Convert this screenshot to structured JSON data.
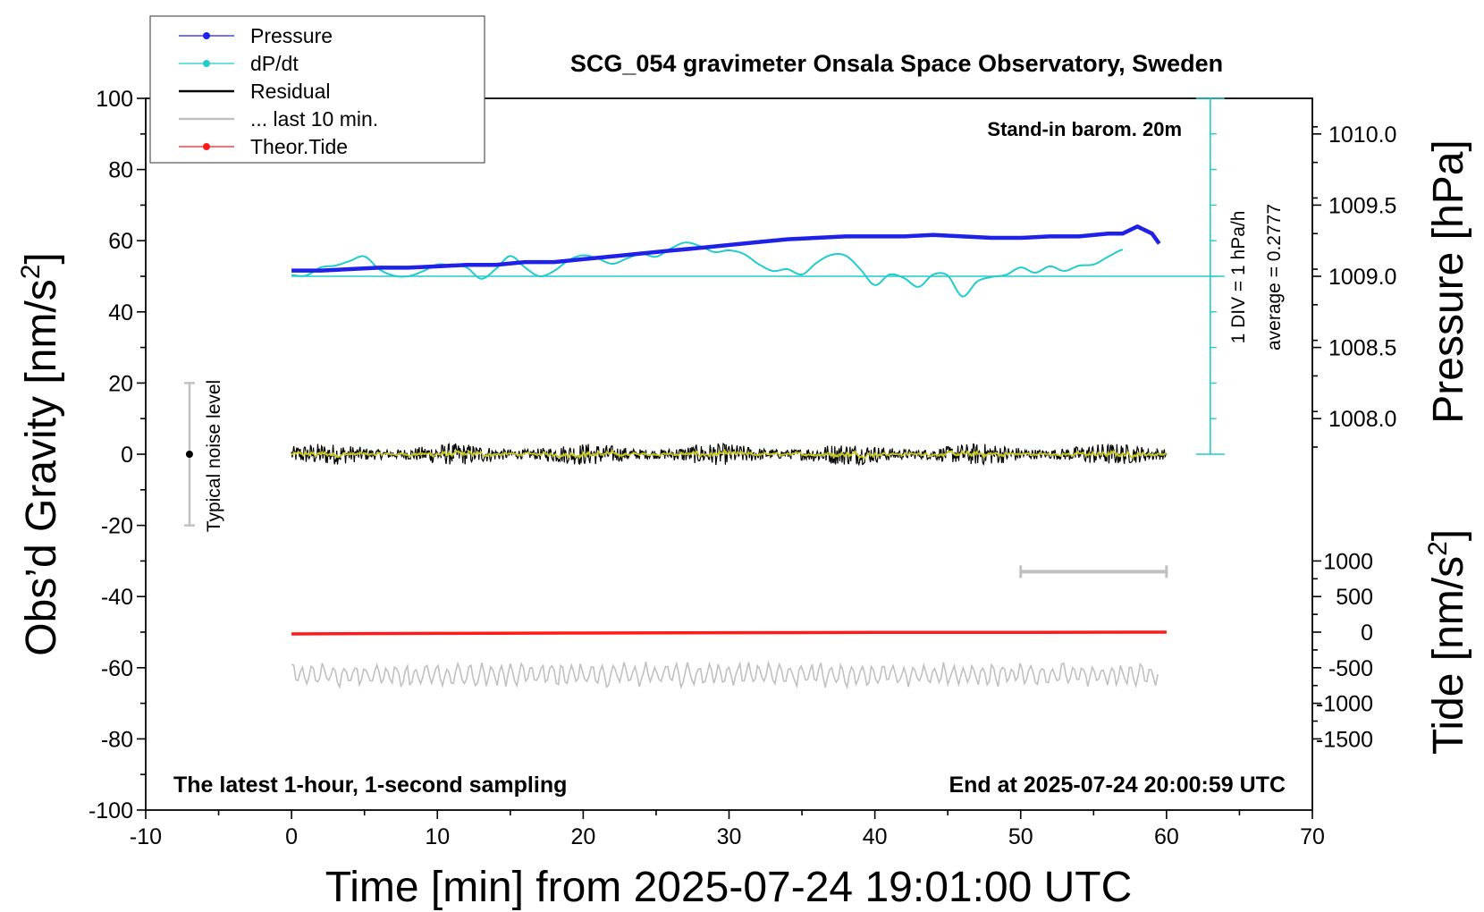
{
  "chart_data": {
    "type": "line",
    "title": "SCG_054 gravimeter Onsala Space Observatory, Sweden",
    "xlabel": "Time [min] from 2025-07-24 19:01:00 UTC",
    "ylabel_left": "Obs’d Gravity [nm/s",
    "ylabel_left_sup": "2",
    "ylabel_left_close": "]",
    "ylabel_right_pressure": "Pressure [hPa]",
    "ylabel_right_tide": "Tide [nm/s",
    "ylabel_right_tide_sup": "2",
    "ylabel_right_tide_close": "]",
    "xlim": [
      -10,
      70
    ],
    "ylim_left": [
      -100,
      100
    ],
    "pressure_axis": {
      "value_at_gravity_50": 1009.0,
      "hpa_per_40_gravity": 1.0
    },
    "tide_axis": {
      "value_at_gravity_minus_50": 0,
      "nm_per_gravity_unit": 50
    },
    "x_ticks": [
      "-10",
      "0",
      "10",
      "20",
      "30",
      "40",
      "50",
      "60",
      "70"
    ],
    "x_tick_values": [
      -10,
      0,
      10,
      20,
      30,
      40,
      50,
      60,
      70
    ],
    "y_ticks_left": [
      "100",
      "80",
      "60",
      "40",
      "20",
      "0",
      "-20",
      "-40",
      "-60",
      "-80",
      "-100"
    ],
    "y_tick_values_left": [
      100,
      80,
      60,
      40,
      20,
      0,
      -20,
      -40,
      -60,
      -80,
      -100
    ],
    "pressure_ticks": [
      "1010.0",
      "1009.5",
      "1009.0",
      "1008.5",
      "1008.0"
    ],
    "pressure_tick_values": [
      1010.0,
      1009.5,
      1009.0,
      1008.5,
      1008.0
    ],
    "tide_ticks": [
      "1000",
      "500",
      "0",
      "-500",
      "-1000",
      "-1500"
    ],
    "tide_tick_values": [
      1000,
      500,
      0,
      -500,
      -1000,
      -1500
    ],
    "legend": [
      {
        "label": "Pressure",
        "color": "#1f22e6",
        "marker": true
      },
      {
        "label": "dP/dt",
        "color": "#22cccc",
        "marker": true
      },
      {
        "label": "Residual",
        "color": "#000000",
        "marker": false
      },
      {
        "label": "... last 10 min.",
        "color": "#c0c0c0",
        "marker": false
      },
      {
        "label": "Theor.Tide",
        "color": "#ff1a1a",
        "marker": true
      }
    ],
    "series": [
      {
        "name": "Pressure",
        "color": "#1f22e6",
        "axis": "pressure",
        "x": [
          0,
          2,
          4,
          6,
          8,
          10,
          12,
          14,
          16,
          18,
          20,
          22,
          24,
          26,
          28,
          30,
          32,
          34,
          36,
          38,
          40,
          42,
          44,
          46,
          48,
          50,
          52,
          54,
          56,
          57,
          58,
          59,
          59.5
        ],
        "y": [
          1009.04,
          1009.04,
          1009.05,
          1009.06,
          1009.06,
          1009.07,
          1009.08,
          1009.08,
          1009.1,
          1009.1,
          1009.12,
          1009.14,
          1009.16,
          1009.18,
          1009.2,
          1009.22,
          1009.24,
          1009.26,
          1009.27,
          1009.28,
          1009.28,
          1009.28,
          1009.29,
          1009.28,
          1009.27,
          1009.27,
          1009.28,
          1009.28,
          1009.3,
          1009.3,
          1009.35,
          1009.3,
          1009.23
        ]
      },
      {
        "name": "dP/dt",
        "color": "#22cccc",
        "axis": "gravity",
        "x": [
          0,
          1,
          2,
          3,
          4,
          5,
          6,
          7,
          8,
          9,
          10,
          11,
          12,
          13,
          14,
          15,
          16,
          17,
          18,
          19,
          20,
          21,
          22,
          23,
          24,
          25,
          26,
          27,
          28,
          29,
          30,
          31,
          32,
          33,
          34,
          35,
          36,
          37,
          38,
          39,
          40,
          41,
          42,
          43,
          44,
          45,
          46,
          47,
          48,
          49,
          50,
          51,
          52,
          53,
          54,
          55,
          56,
          57
        ],
        "y": [
          50.3,
          50.2,
          52.5,
          53.0,
          54.3,
          55.6,
          52.0,
          50.2,
          50.0,
          51.4,
          53.3,
          53.0,
          52.5,
          49.3,
          52.0,
          55.7,
          52.5,
          50.0,
          51.5,
          54.5,
          55.9,
          55.0,
          53.5,
          55.0,
          56.3,
          55.5,
          57.8,
          59.5,
          58.5,
          56.8,
          57.3,
          56.3,
          53.5,
          51.5,
          52.0,
          50.5,
          53.8,
          56.0,
          55.8,
          52.0,
          47.5,
          50.5,
          49.5,
          47.0,
          50.5,
          50.2,
          44.3,
          48.5,
          49.8,
          50.4,
          52.5,
          51.0,
          52.8,
          51.5,
          53.0,
          53.3,
          55.5,
          57.5
        ]
      },
      {
        "name": "Residual",
        "color": "#000000",
        "axis": "gravity",
        "x_range": [
          0,
          60
        ],
        "amplitude": 2.2,
        "last_10_min_color": "#c8c814"
      },
      {
        "name": "... last 10 min.",
        "color": "#c0c0c0",
        "axis": "gravity",
        "x_range": [
          0,
          59.5
        ],
        "center": -62,
        "amplitude": 2.5
      },
      {
        "name": "Theor.Tide",
        "color": "#ff1a1a",
        "axis": "tide",
        "x": [
          0,
          10,
          20,
          30,
          40,
          50,
          60
        ],
        "y": [
          -25,
          -18,
          -12,
          -7,
          -4,
          -2,
          0
        ]
      }
    ],
    "annotations": {
      "stand_in": "Stand-in barom. 20m",
      "div_label": "1 DIV = 1 hPa/h",
      "average_label": "average = 0.2777",
      "noise_label": "Typical noise level",
      "noise_bar": {
        "x": -7,
        "y_low": -20,
        "y_high": 20,
        "center": 0
      },
      "last10_bar": {
        "x_start": 50,
        "x_end": 60,
        "y": -33
      },
      "dpdt_baseline": 50,
      "dpdt_scale_x": 63,
      "dpdt_scale_range": [
        0,
        100
      ],
      "bottom_left": "The latest 1-hour, 1-second sampling",
      "bottom_right": "End at 2025-07-24 20:00:59 UTC"
    }
  }
}
